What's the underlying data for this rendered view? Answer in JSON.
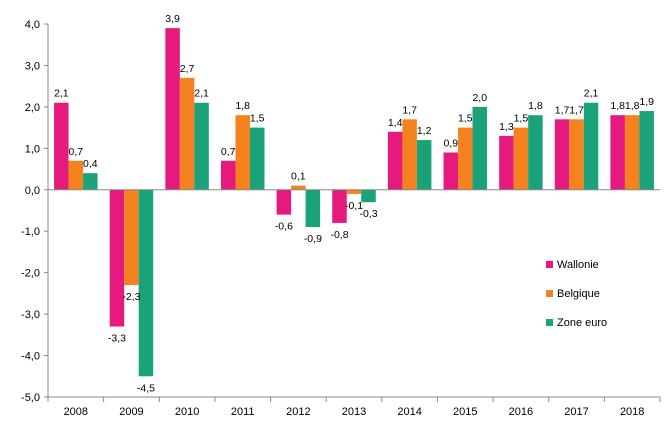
{
  "chart_data": {
    "type": "bar",
    "title": "",
    "xlabel": "",
    "ylabel": "",
    "categories": [
      "2008",
      "2009",
      "2010",
      "2011",
      "2012",
      "2013",
      "2014",
      "2015",
      "2016",
      "2017",
      "2018"
    ],
    "series": [
      {
        "name": "Wallonie",
        "color": "#e6197f",
        "values": [
          2.1,
          -3.3,
          3.9,
          0.7,
          -0.6,
          -0.8,
          1.4,
          0.9,
          1.3,
          1.7,
          1.8
        ],
        "labels": [
          "2,1",
          "-3,3",
          "3,9",
          "0,7",
          "-0,6",
          "-0,8",
          "1,4",
          "0,9",
          "1,3",
          "1,7",
          "1,8"
        ]
      },
      {
        "name": "Belgique",
        "color": "#f5821f",
        "values": [
          0.7,
          -2.3,
          2.7,
          1.8,
          0.1,
          -0.1,
          1.7,
          1.5,
          1.5,
          1.7,
          1.8
        ],
        "labels": [
          "0,7",
          "-2,3",
          "2,7",
          "1,8",
          "0,1",
          "-0,1",
          "1,7",
          "1,5",
          "1,5",
          "1,7",
          "1,8"
        ]
      },
      {
        "name": "Zone euro",
        "color": "#1aa37a",
        "values": [
          0.4,
          -4.5,
          2.1,
          1.5,
          -0.9,
          -0.3,
          1.2,
          2.0,
          1.8,
          2.1,
          1.9
        ],
        "labels": [
          "0,4",
          "-4,5",
          "2,1",
          "1,5",
          "-0,9",
          "-0,3",
          "1,2",
          "2,0",
          "1,8",
          "2,1",
          "1,9"
        ]
      }
    ],
    "ylim": [
      -5,
      4
    ],
    "yticks": [
      4,
      3,
      2,
      1,
      0,
      -1,
      -2,
      -3,
      -4,
      -5
    ],
    "ytick_labels": [
      "4,0",
      "3,0",
      "2,0",
      "1,0",
      "0,0",
      "-1,0",
      "-2,0",
      "-3,0",
      "-4,0",
      "-5,0"
    ],
    "grid": false,
    "legend_position": "right"
  }
}
